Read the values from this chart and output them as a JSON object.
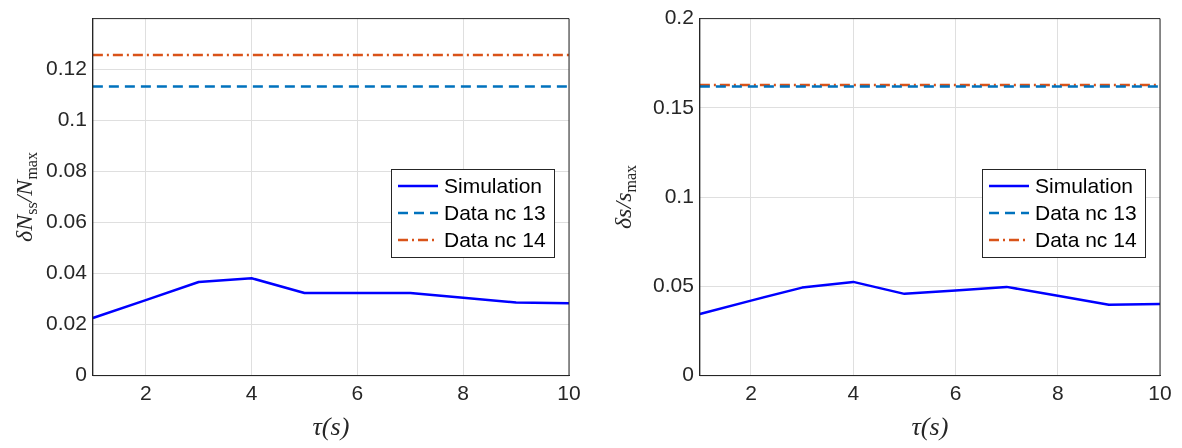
{
  "chart_data": [
    {
      "type": "line",
      "xlabel": "τ(s)",
      "ylabel": "δN$_{ss}$/N$_{max}$",
      "x": [
        1,
        2,
        3,
        4,
        5,
        6,
        7,
        8,
        9,
        10
      ],
      "xlim": [
        1,
        10
      ],
      "xticks": [
        2,
        4,
        6,
        8,
        10
      ],
      "ylim": [
        0,
        0.14
      ],
      "yticks": [
        0,
        0.02,
        0.04,
        0.06,
        0.08,
        0.1,
        0.12
      ],
      "grid": true,
      "legend": "right",
      "series": [
        {
          "name": "Simulation",
          "color": "#0000ff",
          "line_style": "solid",
          "values": [
            0.0226,
            0.0296,
            0.0367,
            0.0382,
            0.0324,
            0.0324,
            0.0324,
            0.0305,
            0.0287,
            0.0284
          ]
        },
        {
          "name": "Data nc 13",
          "color": "#0072bd",
          "line_style": "dashed",
          "values": [
            0.1134,
            0.1134,
            0.1134,
            0.1134,
            0.1134,
            0.1134,
            0.1134,
            0.1134,
            0.1134,
            0.1134
          ]
        },
        {
          "name": "Data nc 14",
          "color": "#d95319",
          "line_style": "dashdot",
          "values": [
            0.1257,
            0.1257,
            0.1257,
            0.1257,
            0.1257,
            0.1257,
            0.1257,
            0.1257,
            0.1257,
            0.1257
          ]
        }
      ]
    },
    {
      "type": "line",
      "xlabel": "τ(s)",
      "ylabel": "δs/s$_{max}$",
      "x": [
        1,
        2,
        3,
        4,
        5,
        6,
        7,
        8,
        9,
        10
      ],
      "xlim": [
        1,
        10
      ],
      "xticks": [
        2,
        4,
        6,
        8,
        10
      ],
      "ylim": [
        0,
        0.2
      ],
      "yticks": [
        0,
        0.05,
        0.1,
        0.15,
        0.2
      ],
      "grid": true,
      "legend": "right",
      "series": [
        {
          "name": "Simulation",
          "color": "#0000ff",
          "line_style": "solid",
          "values": [
            0.0345,
            0.042,
            0.0493,
            0.0525,
            0.0458,
            0.0477,
            0.0497,
            0.0447,
            0.0397,
            0.0401
          ]
        },
        {
          "name": "Data nc 13",
          "color": "#0072bd",
          "line_style": "dashed",
          "values": [
            0.162,
            0.162,
            0.162,
            0.162,
            0.162,
            0.162,
            0.162,
            0.162,
            0.162,
            0.162
          ]
        },
        {
          "name": "Data nc 14",
          "color": "#d95319",
          "line_style": "dashdot",
          "values": [
            0.1628,
            0.1628,
            0.1628,
            0.1628,
            0.1628,
            0.1628,
            0.1628,
            0.1628,
            0.1628,
            0.1628
          ]
        }
      ]
    }
  ]
}
